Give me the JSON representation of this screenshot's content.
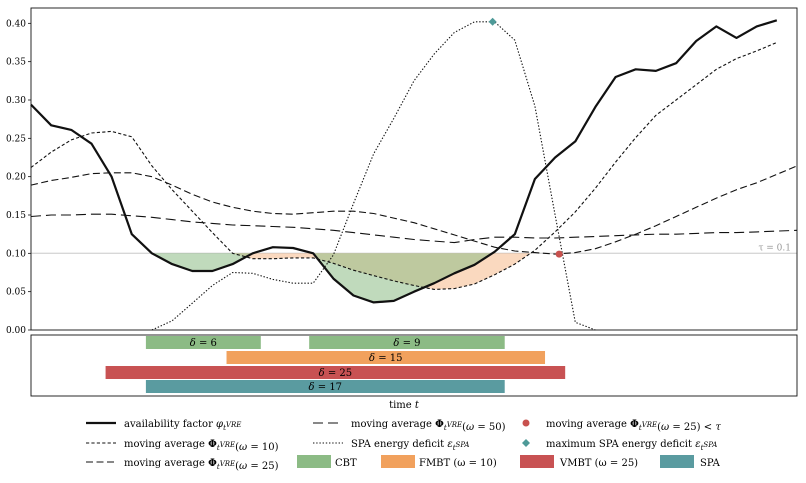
{
  "chart_data": {
    "type": "line",
    "xlabel": "time t",
    "ylim": [
      0,
      0.42
    ],
    "yticks": [
      "0.00",
      "0.05",
      "0.10",
      "0.15",
      "0.20",
      "0.25",
      "0.30",
      "0.35",
      "0.40"
    ],
    "ytick_values": [
      0,
      0.05,
      0.1,
      0.15,
      0.2,
      0.25,
      0.3,
      0.35,
      0.4
    ],
    "threshold": {
      "value": 0.1,
      "label": "τ = 0.1"
    },
    "x": [
      0,
      1,
      2,
      3,
      4,
      5,
      6,
      7,
      8,
      9,
      10,
      11,
      12,
      13,
      14,
      15,
      16,
      17,
      18,
      19,
      20,
      21,
      22,
      23,
      24,
      25,
      26,
      27,
      28,
      29,
      30,
      31,
      32,
      33,
      34,
      35,
      36,
      37,
      38
    ],
    "series": [
      {
        "name": "availability factor φ_t^VRE",
        "values": [
          0.294,
          0.267,
          0.261,
          0.243,
          0.2,
          0.125,
          0.1,
          0.086,
          0.077,
          0.077,
          0.086,
          0.1,
          0.108,
          0.107,
          0.1,
          0.067,
          0.045,
          0.036,
          0.038,
          0.05,
          0.061,
          0.074,
          0.085,
          0.102,
          0.125,
          0.197,
          0.225,
          0.246,
          0.291,
          0.33,
          0.34,
          0.338,
          0.348,
          0.377,
          0.396,
          0.381,
          0.396,
          0.404,
          null
        ]
      },
      {
        "name": "moving average Φ_t^VRE(ω = 10)",
        "values": [
          0.212,
          0.232,
          0.248,
          0.257,
          0.259,
          0.252,
          0.214,
          0.183,
          0.155,
          0.127,
          0.1,
          0.093,
          0.093,
          0.094,
          0.094,
          0.087,
          0.078,
          0.071,
          0.064,
          0.058,
          0.053,
          0.054,
          0.06,
          0.072,
          0.086,
          0.104,
          0.128,
          0.154,
          0.185,
          0.219,
          0.251,
          0.28,
          0.3,
          0.32,
          0.34,
          0.354,
          0.364,
          0.375,
          null
        ]
      },
      {
        "name": "moving average Φ_t^VRE(ω = 25)",
        "values": [
          0.189,
          0.195,
          0.199,
          0.204,
          0.205,
          0.205,
          0.2,
          0.189,
          0.177,
          0.167,
          0.16,
          0.155,
          0.152,
          0.151,
          0.153,
          0.155,
          0.155,
          0.152,
          0.146,
          0.14,
          0.132,
          0.124,
          0.116,
          0.108,
          0.103,
          0.101,
          0.099,
          0.101,
          0.106,
          0.115,
          0.125,
          0.136,
          0.148,
          0.16,
          0.172,
          0.183,
          0.192,
          0.203,
          0.214
        ]
      },
      {
        "name": "moving average Φ_t^VRE(ω = 50)",
        "values": [
          0.148,
          0.15,
          0.15,
          0.151,
          0.151,
          0.149,
          0.147,
          0.144,
          0.141,
          0.139,
          0.137,
          0.136,
          0.135,
          0.134,
          0.132,
          0.13,
          0.127,
          0.124,
          0.121,
          0.118,
          0.116,
          0.114,
          0.118,
          0.121,
          0.121,
          0.12,
          0.12,
          0.121,
          0.122,
          0.123,
          0.124,
          0.125,
          0.125,
          0.126,
          0.127,
          0.127,
          0.128,
          0.129,
          0.13
        ]
      },
      {
        "name": "SPA energy deficit ε_t^SPA",
        "values": [
          null,
          null,
          null,
          null,
          null,
          null,
          0.0,
          0.012,
          0.035,
          0.058,
          0.075,
          0.074,
          0.066,
          0.061,
          0.061,
          0.098,
          0.165,
          0.23,
          0.276,
          0.325,
          0.36,
          0.388,
          0.402,
          0.402,
          0.378,
          0.292,
          0.15,
          0.01,
          0.0,
          null,
          null,
          null,
          null,
          null,
          null,
          null,
          null,
          null,
          null
        ]
      }
    ],
    "markers": [
      {
        "name": "moving average Φ_t^VRE(ω = 25) < τ",
        "x": 26.2,
        "y": 0.099,
        "color": "#c8514e",
        "shape": "circle"
      },
      {
        "name": "maximum SPA energy deficit ε_t^SPA",
        "x": 22.9,
        "y": 0.402,
        "color": "#4e9a98",
        "shape": "diamond"
      }
    ],
    "bars": [
      {
        "name": "CBT",
        "label": "δ = 6",
        "start": 5.7,
        "end": 11.4,
        "color": "#8cbb85"
      },
      {
        "name": "CBT",
        "label": "δ = 9",
        "start": 13.8,
        "end": 23.5,
        "color": "#8cbb85"
      },
      {
        "name": "FMBT (ω = 10)",
        "label": "δ = 15",
        "start": 9.7,
        "end": 25.5,
        "color": "#f1a15d"
      },
      {
        "name": "VMBT (ω = 25)",
        "label": "δ = 25",
        "start": 3.7,
        "end": 26.5,
        "color": "#c85253"
      },
      {
        "name": "SPA",
        "label": "δ = 17",
        "start": 5.7,
        "end": 23.5,
        "color": "#5a9ba0"
      }
    ],
    "legend": [
      [
        "availability factor φ_t^VRE",
        "moving average Φ_t^VRE(ω = 50)",
        "moving average Φ_t^VRE(ω = 25) < τ"
      ],
      [
        "moving average Φ_t^VRE(ω = 10)",
        "SPA energy deficit ε_t^SPA",
        "maximum SPA energy deficit ε_t^SPA"
      ],
      [
        "moving average Φ_t^VRE(ω = 25)",
        "CBT",
        "FMBT (ω = 10)",
        "VMBT (ω = 25)",
        "SPA"
      ]
    ]
  }
}
